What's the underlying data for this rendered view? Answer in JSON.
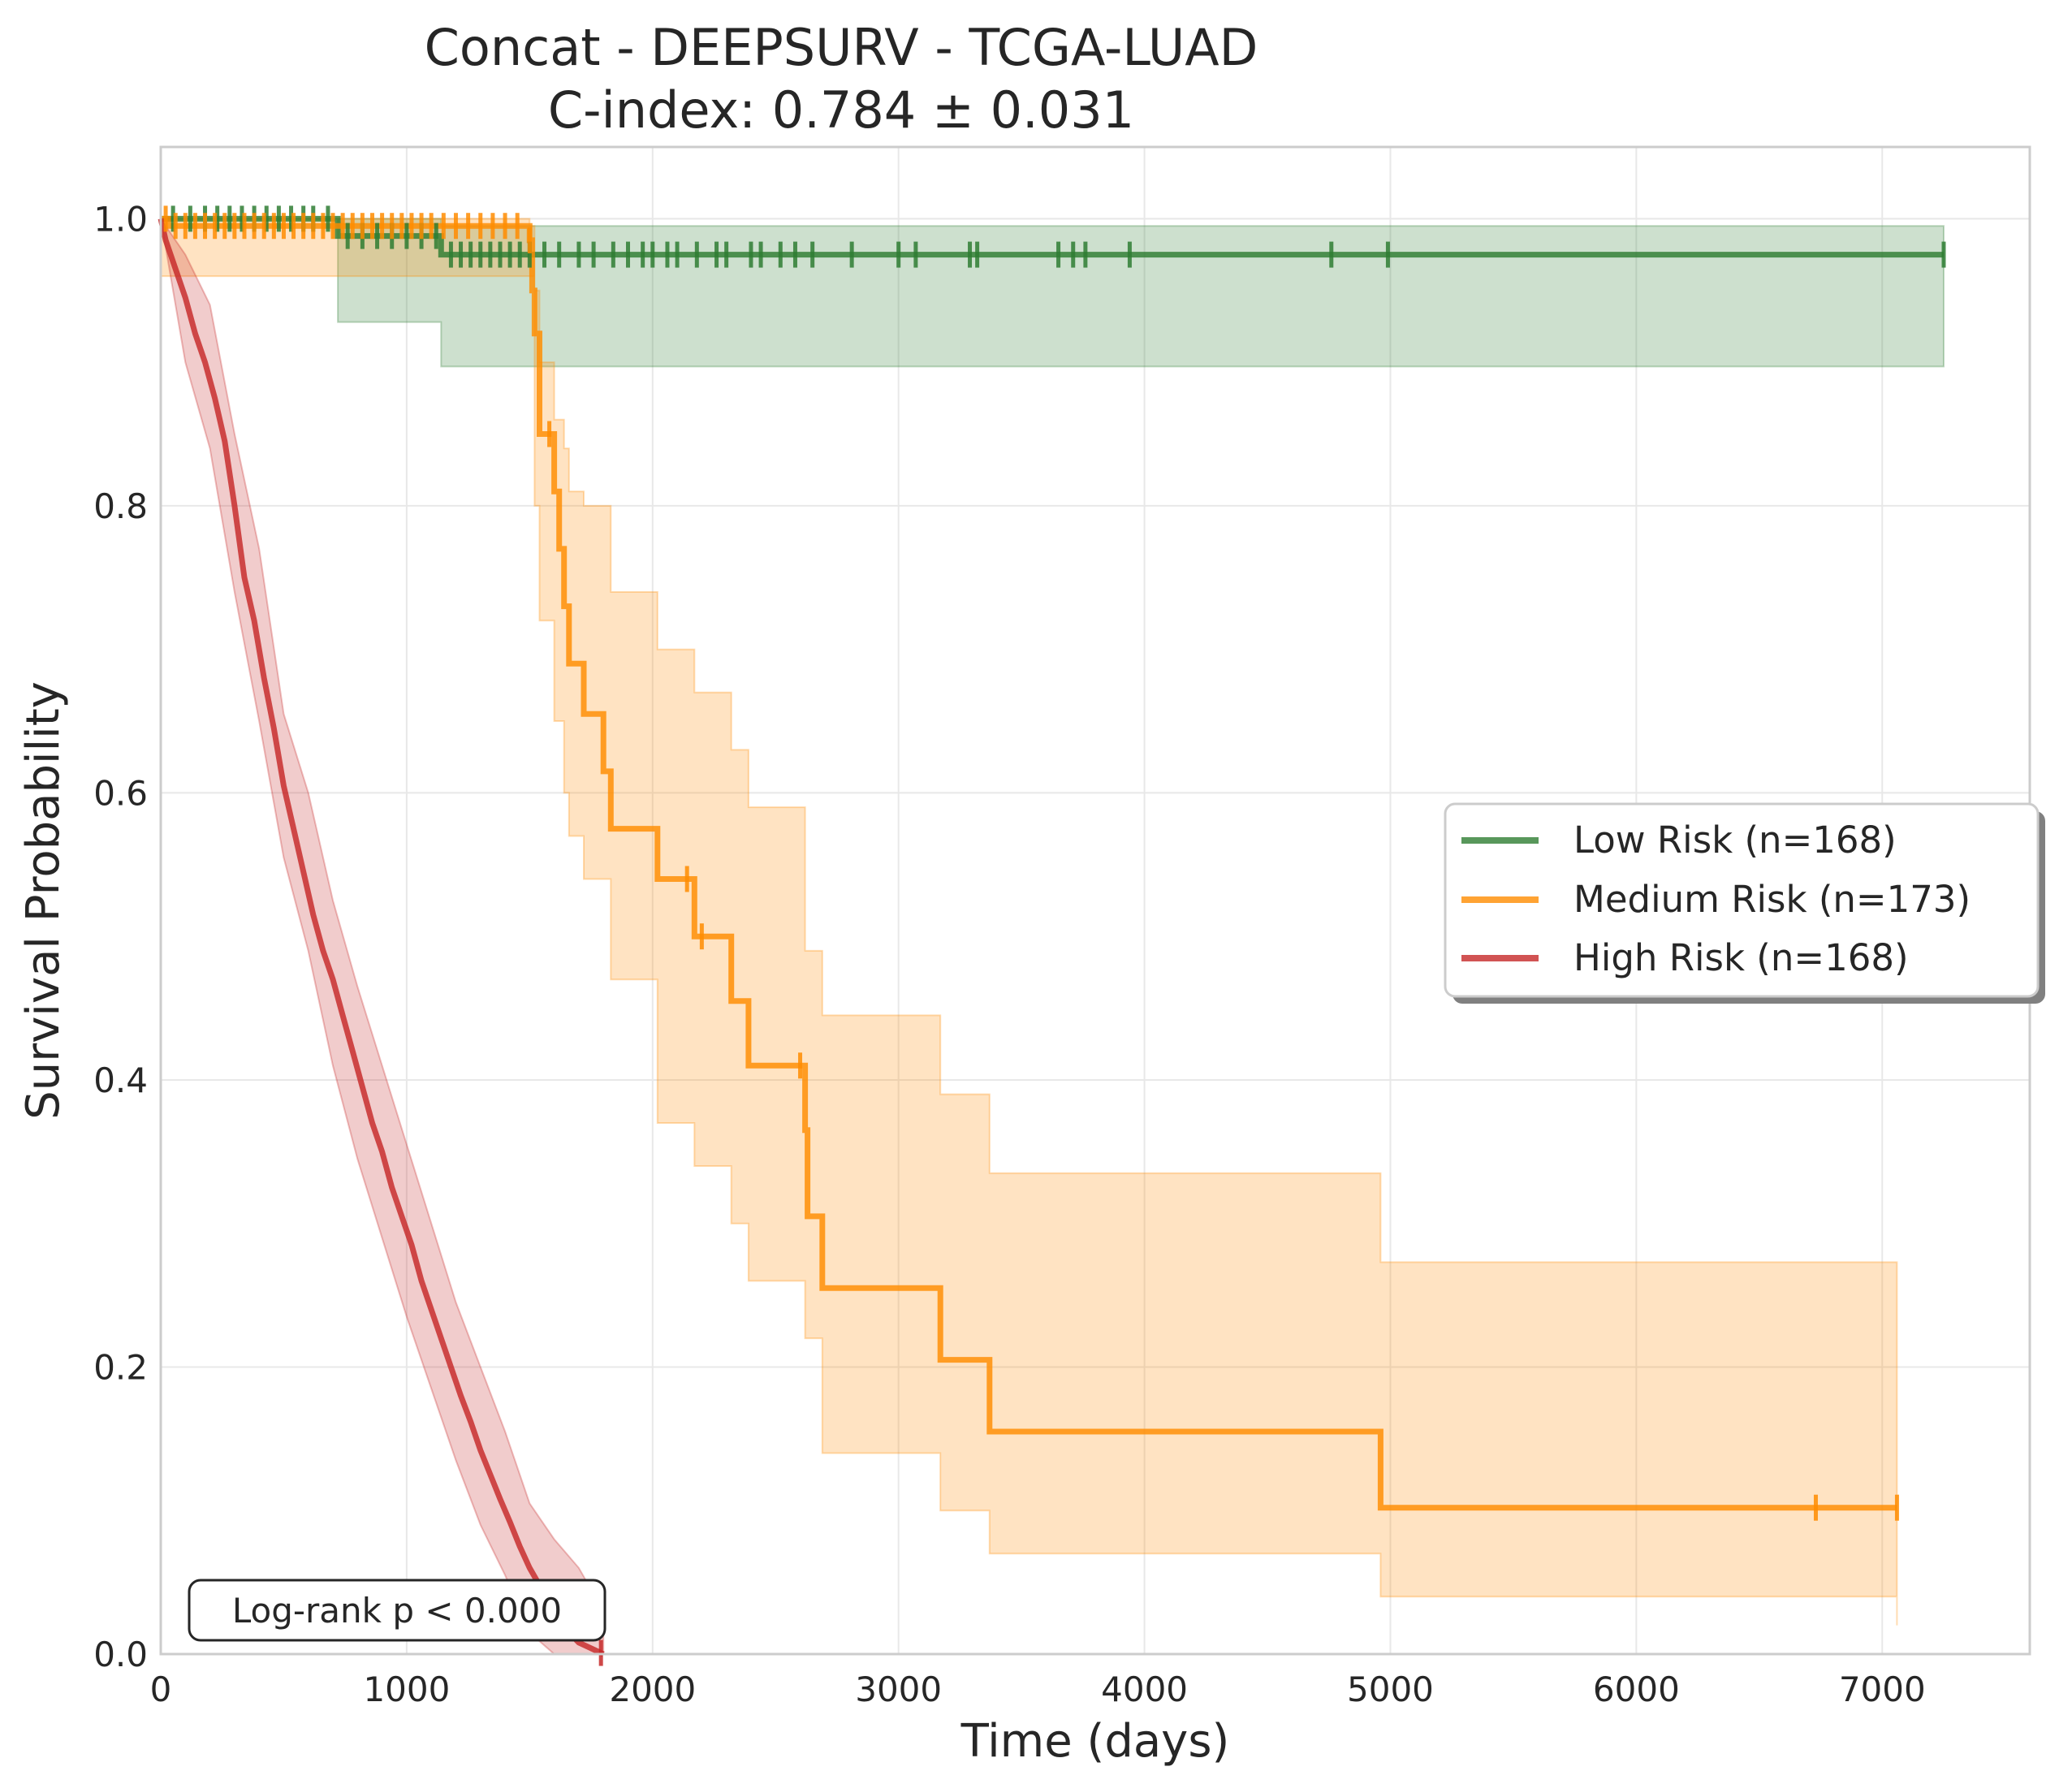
{
  "chart_data": {
    "type": "line",
    "title": "Concat - DEEPSURV - TCGA-LUAD",
    "subtitle": "C-index: 0.784 ± 0.031",
    "xlabel": "Time (days)",
    "ylabel": "Survival Probability",
    "xlim": [
      0,
      7600
    ],
    "ylim": [
      0,
      1.05
    ],
    "xticks": [
      "0",
      "1000",
      "2000",
      "3000",
      "4000",
      "5000",
      "6000",
      "7000"
    ],
    "yticks": [
      "0.0",
      "0.2",
      "0.4",
      "0.6",
      "0.8",
      "1.0"
    ],
    "grid": true,
    "legend_position": "center-right",
    "annotation": "Log-rank p < 0.000",
    "series": [
      {
        "name": "Low Risk (n=168)",
        "color": "#2e7d32",
        "steps": [
          [
            0,
            1.0
          ],
          [
            720,
            0.988
          ],
          [
            1140,
            0.975
          ],
          [
            7250,
            0.975
          ]
        ],
        "ci_steps": [
          [
            0,
            1.0,
            1.0
          ],
          [
            720,
            1.0,
            0.928
          ],
          [
            1140,
            0.995,
            0.897
          ],
          [
            7250,
            0.995,
            0.897
          ]
        ],
        "censor_times": [
          50,
          120,
          180,
          230,
          280,
          330,
          380,
          430,
          480,
          530,
          580,
          620,
          680,
          760,
          820,
          880,
          940,
          1000,
          1060,
          1120,
          1180,
          1220,
          1260,
          1300,
          1340,
          1380,
          1420,
          1460,
          1500,
          1560,
          1620,
          1700,
          1760,
          1840,
          1900,
          1960,
          2000,
          2060,
          2100,
          2180,
          2260,
          2300,
          2400,
          2440,
          2520,
          2580,
          2650,
          2810,
          3000,
          3070,
          3290,
          3320,
          3650,
          3710,
          3760,
          3940,
          4760,
          4990,
          7250
        ]
      },
      {
        "name": "Medium Risk (n=173)",
        "color": "#ff8c00",
        "steps": [
          [
            0,
            1.0
          ],
          [
            30,
            0.995
          ],
          [
            1500,
            0.985
          ],
          [
            1510,
            0.95
          ],
          [
            1520,
            0.92
          ],
          [
            1540,
            0.85
          ],
          [
            1600,
            0.81
          ],
          [
            1620,
            0.77
          ],
          [
            1640,
            0.73
          ],
          [
            1660,
            0.69
          ],
          [
            1720,
            0.655
          ],
          [
            1800,
            0.615
          ],
          [
            1830,
            0.575
          ],
          [
            2020,
            0.54
          ],
          [
            2170,
            0.5
          ],
          [
            2320,
            0.455
          ],
          [
            2390,
            0.41
          ],
          [
            2620,
            0.365
          ],
          [
            2630,
            0.305
          ],
          [
            2690,
            0.255
          ],
          [
            3170,
            0.205
          ],
          [
            3370,
            0.155
          ],
          [
            4960,
            0.102
          ],
          [
            7060,
            0.102
          ]
        ],
        "ci_steps": [
          [
            0,
            1.0,
            0.96
          ],
          [
            1500,
            0.995,
            0.96
          ],
          [
            1520,
            0.95,
            0.8
          ],
          [
            1540,
            0.9,
            0.72
          ],
          [
            1600,
            0.86,
            0.65
          ],
          [
            1640,
            0.84,
            0.6
          ],
          [
            1660,
            0.81,
            0.57
          ],
          [
            1720,
            0.8,
            0.54
          ],
          [
            1830,
            0.74,
            0.47
          ],
          [
            2020,
            0.7,
            0.37
          ],
          [
            2170,
            0.67,
            0.34
          ],
          [
            2320,
            0.63,
            0.3
          ],
          [
            2390,
            0.59,
            0.26
          ],
          [
            2620,
            0.49,
            0.22
          ],
          [
            2690,
            0.445,
            0.14
          ],
          [
            3170,
            0.39,
            0.1
          ],
          [
            3370,
            0.335,
            0.07
          ],
          [
            4960,
            0.273,
            0.04
          ],
          [
            7060,
            0.273,
            0.02
          ]
        ],
        "censor_times": [
          20,
          60,
          100,
          140,
          180,
          220,
          260,
          300,
          340,
          380,
          420,
          460,
          500,
          540,
          580,
          620,
          660,
          700,
          740,
          780,
          820,
          860,
          900,
          940,
          980,
          1020,
          1060,
          1100,
          1150,
          1200,
          1250,
          1300,
          1350,
          1400,
          1450,
          1500,
          1580,
          2140,
          2200,
          2600,
          6730,
          7060
        ]
      },
      {
        "name": "High Risk (n=168)",
        "color": "#c62828",
        "curve": [
          [
            0,
            1.0
          ],
          [
            20,
            0.985
          ],
          [
            60,
            0.965
          ],
          [
            100,
            0.945
          ],
          [
            140,
            0.92
          ],
          [
            180,
            0.9
          ],
          [
            220,
            0.875
          ],
          [
            260,
            0.845
          ],
          [
            300,
            0.8
          ],
          [
            340,
            0.75
          ],
          [
            380,
            0.72
          ],
          [
            420,
            0.68
          ],
          [
            460,
            0.645
          ],
          [
            500,
            0.605
          ],
          [
            540,
            0.575
          ],
          [
            580,
            0.545
          ],
          [
            620,
            0.515
          ],
          [
            660,
            0.49
          ],
          [
            700,
            0.47
          ],
          [
            740,
            0.445
          ],
          [
            780,
            0.42
          ],
          [
            820,
            0.395
          ],
          [
            860,
            0.37
          ],
          [
            900,
            0.35
          ],
          [
            940,
            0.325
          ],
          [
            980,
            0.305
          ],
          [
            1020,
            0.285
          ],
          [
            1060,
            0.26
          ],
          [
            1100,
            0.24
          ],
          [
            1140,
            0.22
          ],
          [
            1180,
            0.2
          ],
          [
            1220,
            0.18
          ],
          [
            1260,
            0.162
          ],
          [
            1300,
            0.142
          ],
          [
            1340,
            0.125
          ],
          [
            1380,
            0.108
          ],
          [
            1420,
            0.092
          ],
          [
            1460,
            0.075
          ],
          [
            1500,
            0.06
          ],
          [
            1540,
            0.048
          ],
          [
            1580,
            0.035
          ],
          [
            1620,
            0.025
          ],
          [
            1660,
            0.015
          ],
          [
            1700,
            0.008
          ],
          [
            1750,
            0.004
          ],
          [
            1800,
            0.0
          ]
        ],
        "ci_upper": [
          [
            0,
            1.0
          ],
          [
            100,
            0.975
          ],
          [
            200,
            0.94
          ],
          [
            300,
            0.85
          ],
          [
            400,
            0.77
          ],
          [
            500,
            0.655
          ],
          [
            600,
            0.6
          ],
          [
            700,
            0.525
          ],
          [
            800,
            0.465
          ],
          [
            900,
            0.41
          ],
          [
            1000,
            0.355
          ],
          [
            1100,
            0.3
          ],
          [
            1200,
            0.245
          ],
          [
            1300,
            0.2
          ],
          [
            1400,
            0.155
          ],
          [
            1500,
            0.105
          ],
          [
            1600,
            0.08
          ],
          [
            1700,
            0.06
          ],
          [
            1800,
            0.03
          ]
        ],
        "ci_lower": [
          [
            0,
            1.0
          ],
          [
            100,
            0.9
          ],
          [
            200,
            0.84
          ],
          [
            300,
            0.74
          ],
          [
            400,
            0.65
          ],
          [
            500,
            0.555
          ],
          [
            600,
            0.49
          ],
          [
            700,
            0.41
          ],
          [
            800,
            0.345
          ],
          [
            900,
            0.29
          ],
          [
            1000,
            0.235
          ],
          [
            1100,
            0.185
          ],
          [
            1200,
            0.135
          ],
          [
            1300,
            0.09
          ],
          [
            1400,
            0.055
          ],
          [
            1500,
            0.015
          ],
          [
            1600,
            0.0
          ],
          [
            1800,
            0.0
          ]
        ],
        "censor_times": [
          1790
        ]
      }
    ]
  }
}
